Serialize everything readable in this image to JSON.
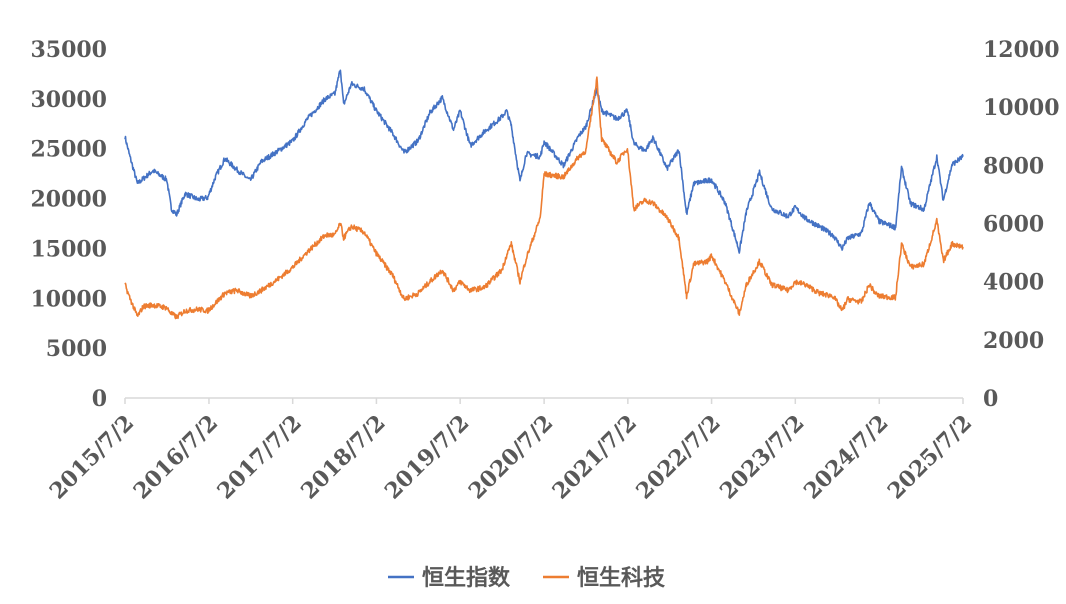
{
  "chart_data": {
    "type": "line",
    "title": "",
    "xlabel": "",
    "ylabel_left": "",
    "ylabel_right": "",
    "x_tick_labels": [
      "2015/7/2",
      "2016/7/2",
      "2017/7/2",
      "2018/7/2",
      "2019/7/2",
      "2020/7/2",
      "2021/7/2",
      "2022/7/2",
      "2023/7/2",
      "2024/7/2",
      "2025/7/2"
    ],
    "y_left": {
      "lim": [
        0,
        35000
      ],
      "ticks": [
        "0",
        "5000",
        "10000",
        "15000",
        "20000",
        "25000",
        "30000",
        "35000"
      ]
    },
    "y_right": {
      "lim": [
        0,
        12000
      ],
      "ticks": [
        "0",
        "2000",
        "4000",
        "6000",
        "8000",
        "10000",
        "12000"
      ]
    },
    "grid": false,
    "legend_position": "bottom",
    "series": [
      {
        "name": "恒生指数",
        "axis": "left",
        "color": "#4472C4",
        "points": [
          [
            "2015-07-02",
            26200
          ],
          [
            "2015-07-20",
            24500
          ],
          [
            "2015-08-25",
            21500
          ],
          [
            "2015-09-20",
            22000
          ],
          [
            "2015-11-01",
            22800
          ],
          [
            "2015-12-31",
            21900
          ],
          [
            "2016-01-20",
            19000
          ],
          [
            "2016-02-12",
            18400
          ],
          [
            "2016-03-20",
            20500
          ],
          [
            "2016-05-15",
            19900
          ],
          [
            "2016-06-27",
            20100
          ],
          [
            "2016-07-29",
            22100
          ],
          [
            "2016-09-09",
            24000
          ],
          [
            "2016-11-01",
            22900
          ],
          [
            "2016-12-29",
            21800
          ],
          [
            "2017-02-15",
            23700
          ],
          [
            "2017-05-01",
            24800
          ],
          [
            "2017-07-03",
            25800
          ],
          [
            "2017-09-01",
            27900
          ],
          [
            "2017-11-21",
            30000
          ],
          [
            "2018-01-02",
            30500
          ],
          [
            "2018-01-26",
            33000
          ],
          [
            "2018-02-09",
            29400
          ],
          [
            "2018-03-15",
            31500
          ],
          [
            "2018-05-10",
            31000
          ],
          [
            "2018-06-29",
            28900
          ],
          [
            "2018-09-12",
            26500
          ],
          [
            "2018-10-30",
            24600
          ],
          [
            "2018-12-31",
            25800
          ],
          [
            "2019-02-20",
            28600
          ],
          [
            "2019-04-15",
            30100
          ],
          [
            "2019-06-03",
            26900
          ],
          [
            "2019-07-02",
            28800
          ],
          [
            "2019-08-15",
            25300
          ],
          [
            "2019-10-15",
            26700
          ],
          [
            "2019-12-31",
            28200
          ],
          [
            "2020-01-20",
            28800
          ],
          [
            "2020-02-10",
            27300
          ],
          [
            "2020-03-19",
            21700
          ],
          [
            "2020-04-15",
            24500
          ],
          [
            "2020-06-15",
            24200
          ],
          [
            "2020-07-02",
            25700
          ],
          [
            "2020-09-25",
            23300
          ],
          [
            "2020-11-30",
            26300
          ],
          [
            "2020-12-31",
            27200
          ],
          [
            "2021-02-17",
            31000
          ],
          [
            "2021-03-10",
            28800
          ],
          [
            "2021-05-15",
            28000
          ],
          [
            "2021-06-30",
            28800
          ],
          [
            "2021-07-28",
            25500
          ],
          [
            "2021-09-15",
            24800
          ],
          [
            "2021-10-20",
            26100
          ],
          [
            "2021-12-20",
            23000
          ],
          [
            "2022-02-10",
            24900
          ],
          [
            "2022-03-15",
            18400
          ],
          [
            "2022-04-15",
            21500
          ],
          [
            "2022-06-15",
            21800
          ],
          [
            "2022-07-02",
            21900
          ],
          [
            "2022-08-30",
            19600
          ],
          [
            "2022-10-31",
            14700
          ],
          [
            "2022-12-01",
            18700
          ],
          [
            "2023-01-27",
            22600
          ],
          [
            "2023-03-20",
            19000
          ],
          [
            "2023-05-31",
            18200
          ],
          [
            "2023-07-02",
            19100
          ],
          [
            "2023-08-15",
            18000
          ],
          [
            "2023-10-15",
            17200
          ],
          [
            "2023-12-15",
            16300
          ],
          [
            "2024-01-22",
            15000
          ],
          [
            "2024-02-15",
            16000
          ],
          [
            "2024-04-15",
            16500
          ],
          [
            "2024-05-20",
            19600
          ],
          [
            "2024-06-15",
            18400
          ],
          [
            "2024-07-02",
            17700
          ],
          [
            "2024-09-11",
            17100
          ],
          [
            "2024-10-07",
            23100
          ],
          [
            "2024-11-15",
            19500
          ],
          [
            "2025-01-13",
            18900
          ],
          [
            "2025-03-10",
            24200
          ],
          [
            "2025-04-07",
            19800
          ],
          [
            "2025-05-15",
            23400
          ],
          [
            "2025-07-02",
            24200
          ]
        ]
      },
      {
        "name": "恒生科技",
        "axis": "right",
        "color": "#ED7D31",
        "points": [
          [
            "2015-07-02",
            3900
          ],
          [
            "2015-07-20",
            3500
          ],
          [
            "2015-08-25",
            2800
          ],
          [
            "2015-09-20",
            3150
          ],
          [
            "2015-11-01",
            3200
          ],
          [
            "2015-12-31",
            3100
          ],
          [
            "2016-01-20",
            2900
          ],
          [
            "2016-02-12",
            2780
          ],
          [
            "2016-03-20",
            3000
          ],
          [
            "2016-05-15",
            3050
          ],
          [
            "2016-06-27",
            3000
          ],
          [
            "2016-07-29",
            3250
          ],
          [
            "2016-09-09",
            3600
          ],
          [
            "2016-11-01",
            3700
          ],
          [
            "2016-12-29",
            3500
          ],
          [
            "2017-02-15",
            3700
          ],
          [
            "2017-05-01",
            4100
          ],
          [
            "2017-07-03",
            4500
          ],
          [
            "2017-09-01",
            5000
          ],
          [
            "2017-11-21",
            5600
          ],
          [
            "2018-01-02",
            5600
          ],
          [
            "2018-01-26",
            6000
          ],
          [
            "2018-02-09",
            5500
          ],
          [
            "2018-03-15",
            5900
          ],
          [
            "2018-05-10",
            5700
          ],
          [
            "2018-06-29",
            5000
          ],
          [
            "2018-09-12",
            4200
          ],
          [
            "2018-10-30",
            3400
          ],
          [
            "2018-12-31",
            3600
          ],
          [
            "2019-02-20",
            4000
          ],
          [
            "2019-04-15",
            4400
          ],
          [
            "2019-06-03",
            3700
          ],
          [
            "2019-07-02",
            4000
          ],
          [
            "2019-08-15",
            3700
          ],
          [
            "2019-10-15",
            3800
          ],
          [
            "2019-12-31",
            4400
          ],
          [
            "2020-01-20",
            4900
          ],
          [
            "2020-02-10",
            5300
          ],
          [
            "2020-03-19",
            4000
          ],
          [
            "2020-04-15",
            4800
          ],
          [
            "2020-06-15",
            6200
          ],
          [
            "2020-07-02",
            7700
          ],
          [
            "2020-09-25",
            7600
          ],
          [
            "2020-11-30",
            8300
          ],
          [
            "2020-12-31",
            8500
          ],
          [
            "2021-02-17",
            11000
          ],
          [
            "2021-03-10",
            8900
          ],
          [
            "2021-05-15",
            8100
          ],
          [
            "2021-06-30",
            8600
          ],
          [
            "2021-07-28",
            6500
          ],
          [
            "2021-09-15",
            6800
          ],
          [
            "2021-10-20",
            6700
          ],
          [
            "2021-12-20",
            6200
          ],
          [
            "2022-02-10",
            5500
          ],
          [
            "2022-03-15",
            3500
          ],
          [
            "2022-04-15",
            4600
          ],
          [
            "2022-06-15",
            4700
          ],
          [
            "2022-07-02",
            4900
          ],
          [
            "2022-08-30",
            4000
          ],
          [
            "2022-10-31",
            2900
          ],
          [
            "2022-12-01",
            3900
          ],
          [
            "2023-01-27",
            4700
          ],
          [
            "2023-03-20",
            3900
          ],
          [
            "2023-05-31",
            3700
          ],
          [
            "2023-07-02",
            4000
          ],
          [
            "2023-08-15",
            3900
          ],
          [
            "2023-10-15",
            3600
          ],
          [
            "2023-12-15",
            3500
          ],
          [
            "2024-01-22",
            3000
          ],
          [
            "2024-02-15",
            3400
          ],
          [
            "2024-04-15",
            3300
          ],
          [
            "2024-05-20",
            3900
          ],
          [
            "2024-06-15",
            3600
          ],
          [
            "2024-07-02",
            3500
          ],
          [
            "2024-09-11",
            3450
          ],
          [
            "2024-10-07",
            5300
          ],
          [
            "2024-11-15",
            4500
          ],
          [
            "2025-01-13",
            4600
          ],
          [
            "2025-03-10",
            6100
          ],
          [
            "2025-04-07",
            4700
          ],
          [
            "2025-05-15",
            5300
          ],
          [
            "2025-07-02",
            5200
          ]
        ]
      }
    ]
  }
}
